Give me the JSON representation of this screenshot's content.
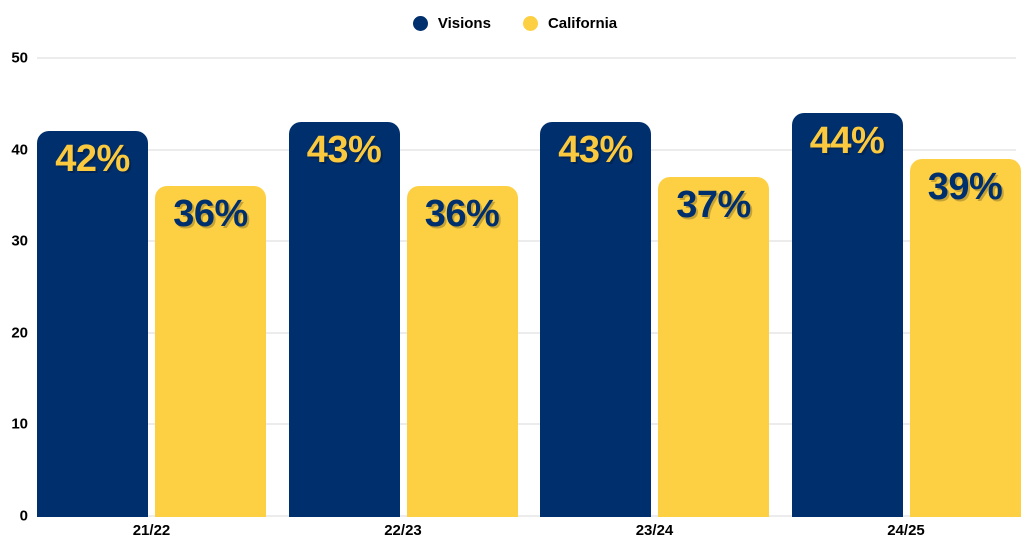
{
  "chart_data": {
    "type": "bar",
    "categories": [
      "21/22",
      "22/23",
      "23/24",
      "24/25"
    ],
    "series": [
      {
        "name": "Visions",
        "color": "#002F6E",
        "label_color": "#FBC93D",
        "values": [
          42,
          43,
          43,
          44
        ],
        "labels": [
          "42%",
          "43%",
          "43%",
          "44%"
        ]
      },
      {
        "name": "California",
        "color": "#FDD044",
        "label_color": "#002F6E",
        "values": [
          36,
          36,
          37,
          39
        ],
        "labels": [
          "36%",
          "36%",
          "37%",
          "39%"
        ]
      }
    ],
    "ylim": [
      0,
      50
    ],
    "yticks": [
      0,
      10,
      20,
      30,
      40,
      50
    ],
    "ytick_labels": [
      "0",
      "10",
      "20",
      "30",
      "40",
      "50"
    ],
    "grid": true,
    "gridline_color": "#ECECEC",
    "legend_position": "top-center",
    "background": "#FFFFFF"
  }
}
